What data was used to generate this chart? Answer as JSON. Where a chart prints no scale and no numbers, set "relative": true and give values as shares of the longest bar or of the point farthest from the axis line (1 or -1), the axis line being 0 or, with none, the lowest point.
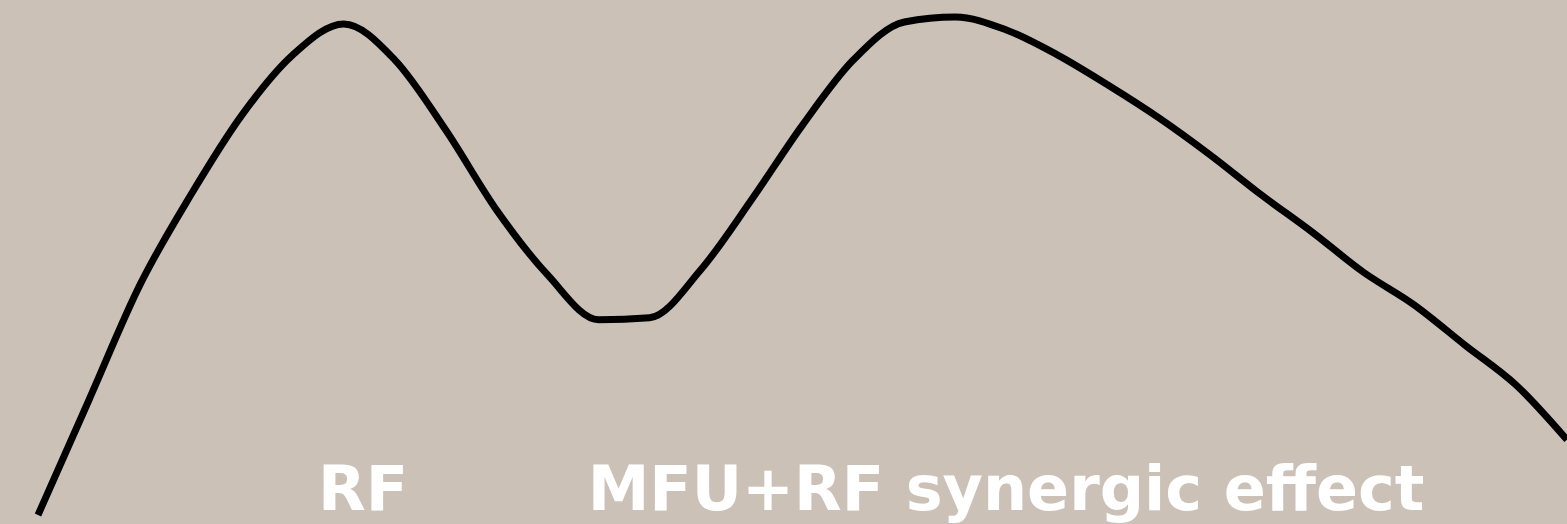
{
  "chart_data": {
    "type": "line",
    "relative": true,
    "categories": [
      null,
      null,
      null,
      null,
      null,
      null,
      null,
      null,
      null,
      null,
      null,
      null,
      null,
      null,
      null,
      null,
      null,
      null,
      null,
      null,
      null,
      null,
      null,
      null,
      null,
      null,
      null,
      null,
      null,
      null,
      null
    ],
    "series": [
      {
        "color": "#000000",
        "values": [
          0,
          0.231,
          0.462,
          0.643,
          0.803,
          0.924,
          0.986,
          0.914,
          0.773,
          0.612,
          0.482,
          0.392,
          0.396,
          0.492,
          0.633,
          0.783,
          0.914,
          0.99,
          1,
          0.974,
          0.924,
          0.863,
          0.797,
          0.723,
          0.643,
          0.568,
          0.488,
          0.422,
          0.341,
          0.261,
          0.151
        ]
      }
    ],
    "annotations": [
      "RF",
      "MFU+RF synergic effect"
    ],
    "line_style": "solid",
    "marker": "none",
    "grid": false,
    "legend": false
  }
}
